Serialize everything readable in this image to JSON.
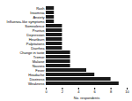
{
  "chart_data": {
    "type": "bar",
    "orientation": "horizontal",
    "categories": [
      "Weakness",
      "Dizziness",
      "Headache",
      "Fever",
      "Nausea",
      "Malaise",
      "Tremor",
      "Change in taste",
      "Diarrhea",
      "Palpitations",
      "Heartburn",
      "Depression",
      "Pruritus",
      "Somnolence",
      "Influenza-like symptoms",
      "Anxiety",
      "Insomnia",
      "Rash"
    ],
    "values": [
      9,
      8,
      6,
      5,
      3,
      3,
      3,
      3,
      2,
      2,
      2,
      2,
      2,
      2,
      1,
      1,
      1,
      1
    ],
    "color": "#1a1a1a",
    "xlabel": "No. respondents",
    "xlim": [
      0,
      10
    ],
    "xticks": [
      0,
      2,
      4,
      6,
      8,
      10
    ],
    "grid": false
  }
}
